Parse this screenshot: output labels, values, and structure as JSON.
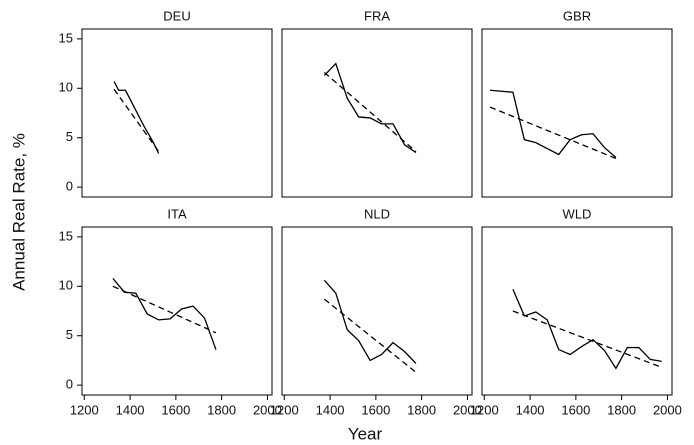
{
  "axis_labels": {
    "x": "Year",
    "y": "Annual Real Rate, %"
  },
  "chart_data": [
    {
      "type": "line",
      "title": "DEU",
      "xlim": [
        1190,
        2020
      ],
      "ylim": [
        -1,
        16
      ],
      "yticks": [
        0,
        5,
        10,
        15
      ],
      "series": [
        {
          "color": "#000000",
          "dashed": false,
          "x": [
            1330,
            1350,
            1380,
            1420,
            1460,
            1500,
            1525
          ],
          "values": [
            10.7,
            9.8,
            9.8,
            8.0,
            6.2,
            4.6,
            3.4
          ]
        },
        {
          "color": "#000000",
          "dashed": true,
          "x": [
            1330,
            1525
          ],
          "values": [
            9.9,
            3.6
          ]
        }
      ]
    },
    {
      "type": "line",
      "title": "FRA",
      "xlim": [
        1190,
        2020
      ],
      "ylim": [
        -1,
        16
      ],
      "series": [
        {
          "color": "#000000",
          "dashed": false,
          "x": [
            1375,
            1425,
            1475,
            1525,
            1575,
            1625,
            1675,
            1725,
            1775
          ],
          "values": [
            11.3,
            12.5,
            9.0,
            7.1,
            7.0,
            6.4,
            6.4,
            4.3,
            3.5
          ]
        },
        {
          "color": "#000000",
          "dashed": true,
          "x": [
            1375,
            1775
          ],
          "values": [
            11.6,
            3.6
          ]
        }
      ]
    },
    {
      "type": "line",
      "title": "GBR",
      "xlim": [
        1190,
        2020
      ],
      "ylim": [
        -1,
        16
      ],
      "series": [
        {
          "color": "#000000",
          "dashed": false,
          "x": [
            1225,
            1275,
            1325,
            1375,
            1425,
            1475,
            1525,
            1575,
            1625,
            1675,
            1725,
            1775
          ],
          "values": [
            9.8,
            9.7,
            9.6,
            4.8,
            4.5,
            3.9,
            3.3,
            4.8,
            5.3,
            5.4,
            4.0,
            3.0
          ]
        },
        {
          "color": "#000000",
          "dashed": true,
          "x": [
            1225,
            1775
          ],
          "values": [
            8.1,
            2.9
          ]
        }
      ]
    },
    {
      "type": "line",
      "title": "ITA",
      "xlim": [
        1190,
        2020
      ],
      "ylim": [
        -1,
        16
      ],
      "yticks": [
        0,
        5,
        10,
        15
      ],
      "xticks": [
        1200,
        1400,
        1600,
        1800,
        2000
      ],
      "series": [
        {
          "color": "#000000",
          "dashed": false,
          "x": [
            1325,
            1375,
            1425,
            1475,
            1525,
            1575,
            1625,
            1675,
            1725,
            1775
          ],
          "values": [
            10.8,
            9.4,
            9.3,
            7.2,
            6.6,
            6.7,
            7.7,
            8.0,
            6.8,
            3.6
          ]
        },
        {
          "color": "#000000",
          "dashed": true,
          "x": [
            1325,
            1775
          ],
          "values": [
            10.0,
            5.3
          ]
        }
      ]
    },
    {
      "type": "line",
      "title": "NLD",
      "xlim": [
        1190,
        2020
      ],
      "ylim": [
        -1,
        16
      ],
      "xticks": [
        1200,
        1400,
        1600,
        1800,
        2000
      ],
      "series": [
        {
          "color": "#000000",
          "dashed": false,
          "x": [
            1375,
            1425,
            1475,
            1525,
            1575,
            1625,
            1675,
            1725,
            1775
          ],
          "values": [
            10.6,
            9.3,
            5.6,
            4.5,
            2.5,
            3.1,
            4.3,
            3.4,
            2.2
          ]
        },
        {
          "color": "#000000",
          "dashed": true,
          "x": [
            1375,
            1775
          ],
          "values": [
            8.7,
            1.3
          ]
        }
      ]
    },
    {
      "type": "line",
      "title": "WLD",
      "xlim": [
        1190,
        2020
      ],
      "ylim": [
        -1,
        16
      ],
      "xticks": [
        1200,
        1400,
        1600,
        1800,
        2000
      ],
      "series": [
        {
          "color": "#000000",
          "dashed": false,
          "x": [
            1325,
            1375,
            1425,
            1475,
            1525,
            1575,
            1625,
            1675,
            1725,
            1775,
            1825,
            1875,
            1925,
            1975
          ],
          "values": [
            9.7,
            7.0,
            7.4,
            6.6,
            3.6,
            3.1,
            3.9,
            4.6,
            3.5,
            1.7,
            3.8,
            3.8,
            2.6,
            2.4
          ]
        },
        {
          "color": "#000000",
          "dashed": true,
          "x": [
            1325,
            1975
          ],
          "values": [
            7.5,
            1.8
          ]
        }
      ]
    }
  ]
}
